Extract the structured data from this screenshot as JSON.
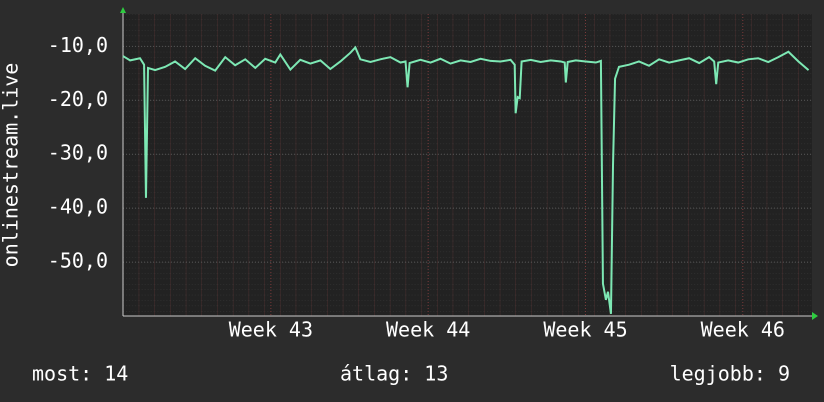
{
  "chart_data": {
    "type": "line",
    "y_label": "onlinestream.live",
    "xlim": [
      42.06,
      46.44
    ],
    "ylim": [
      -60,
      -4
    ],
    "xticks": [
      {
        "value": 43,
        "label": "Week 43"
      },
      {
        "value": 44,
        "label": "Week 44"
      },
      {
        "value": 45,
        "label": "Week 45"
      },
      {
        "value": 46,
        "label": "Week 46"
      }
    ],
    "yticks": [
      {
        "value": -10,
        "label": "-10,0"
      },
      {
        "value": -20,
        "label": "-20,0"
      },
      {
        "value": -30,
        "label": "-30,0"
      },
      {
        "value": -40,
        "label": "-40,0"
      },
      {
        "value": -50,
        "label": "-50,0"
      }
    ],
    "grid": true,
    "series": [
      {
        "color": "#7de8b4",
        "x": [
          42.06,
          42.105,
          42.168,
          42.194,
          42.206,
          42.219,
          42.264,
          42.328,
          42.391,
          42.455,
          42.519,
          42.582,
          42.646,
          42.71,
          42.773,
          42.837,
          42.901,
          42.964,
          43.028,
          43.06,
          43.124,
          43.187,
          43.251,
          43.315,
          43.378,
          43.442,
          43.505,
          43.537,
          43.569,
          43.633,
          43.696,
          43.76,
          43.824,
          43.856,
          43.869,
          43.882,
          43.951,
          44.015,
          44.078,
          44.142,
          44.206,
          44.269,
          44.333,
          44.397,
          44.46,
          44.524,
          44.55,
          44.556,
          44.569,
          44.582,
          44.594,
          44.652,
          44.715,
          44.779,
          44.843,
          44.868,
          44.875,
          44.887,
          44.938,
          45.002,
          45.066,
          45.098,
          45.111,
          45.13,
          45.143,
          45.162,
          45.175,
          45.188,
          45.213,
          45.277,
          45.34,
          45.404,
          45.468,
          45.532,
          45.595,
          45.659,
          45.723,
          45.786,
          45.818,
          45.831,
          45.844,
          45.907,
          45.971,
          46.035,
          46.098,
          46.162,
          46.226,
          46.29,
          46.354,
          46.418
        ],
        "values": [
          -11.8,
          -12.6,
          -12.2,
          -13.4,
          -38.1,
          -14.0,
          -14.4,
          -13.8,
          -12.8,
          -14.2,
          -12.2,
          -13.6,
          -14.5,
          -12.0,
          -13.5,
          -12.4,
          -14.0,
          -12.3,
          -13.0,
          -11.5,
          -14.3,
          -12.5,
          -13.2,
          -12.6,
          -14.2,
          -12.8,
          -11.2,
          -10.2,
          -12.4,
          -12.9,
          -12.4,
          -12.0,
          -13.0,
          -12.8,
          -17.6,
          -13.1,
          -12.5,
          -13.0,
          -12.3,
          -13.2,
          -12.6,
          -12.9,
          -12.3,
          -12.7,
          -12.8,
          -12.5,
          -13.4,
          -22.4,
          -19.4,
          -19.6,
          -12.8,
          -12.5,
          -12.9,
          -12.6,
          -12.8,
          -13.0,
          -16.7,
          -12.9,
          -12.6,
          -12.8,
          -13.0,
          -12.7,
          -54.0,
          -57.0,
          -55.5,
          -59.6,
          -32.0,
          -16.0,
          -13.8,
          -13.4,
          -12.8,
          -13.6,
          -12.4,
          -13.0,
          -12.6,
          -12.2,
          -13.1,
          -12.0,
          -12.8,
          -17.0,
          -13.0,
          -12.6,
          -13.0,
          -12.4,
          -12.2,
          -12.9,
          -12.0,
          -11.0,
          -12.8,
          -14.4
        ]
      }
    ],
    "footer": [
      "most: 14",
      "átlag: 13",
      "legjobb: 9"
    ]
  }
}
